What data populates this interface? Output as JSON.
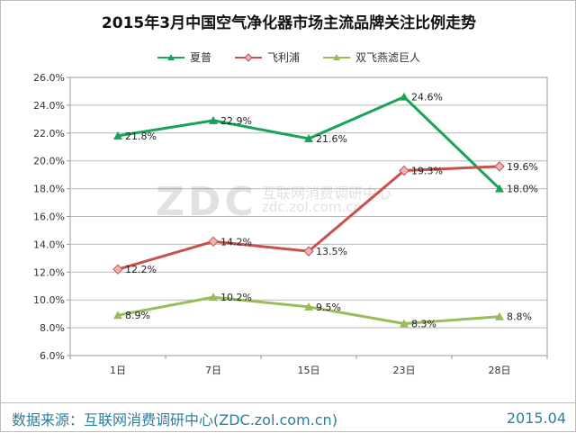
{
  "colors": {
    "series": [
      "#19a35a",
      "#c9504d",
      "#9bbb59"
    ],
    "footer": "#2e7d9b"
  },
  "chart_data": {
    "type": "line",
    "title": "2015年3月中国空气净化器市场主流品牌关注比例走势",
    "categories": [
      "1日",
      "7日",
      "15日",
      "23日",
      "28日"
    ],
    "series": [
      {
        "name": "夏普",
        "values": [
          21.8,
          22.9,
          21.6,
          24.6,
          18.0
        ],
        "labels": [
          "21.8%",
          "22.9%",
          "21.6%",
          "24.6%",
          "18.0%"
        ],
        "marker": "triangle"
      },
      {
        "name": "飞利浦",
        "values": [
          12.2,
          14.2,
          13.5,
          19.3,
          19.6
        ],
        "labels": [
          "12.2%",
          "14.2%",
          "13.5%",
          "19.3%",
          "19.6%"
        ],
        "marker": "diamond"
      },
      {
        "name": "双飞燕滤巨人",
        "values": [
          8.9,
          10.2,
          9.5,
          8.3,
          8.8
        ],
        "labels": [
          "8.9%",
          "10.2%",
          "9.5%",
          "8.3%",
          "8.8%"
        ],
        "marker": "triangle"
      }
    ],
    "y_ticks": [
      "6.0%",
      "8.0%",
      "10.0%",
      "12.0%",
      "14.0%",
      "16.0%",
      "18.0%",
      "20.0%",
      "22.0%",
      "24.0%",
      "26.0%"
    ],
    "ylim": [
      6,
      26
    ],
    "grid": true,
    "legend_position": "top"
  },
  "watermark": {
    "brand": "ZDC",
    "cn": "互联网消费调研中心",
    "url": "zdc.zol.com.cn"
  },
  "footer": {
    "source": "数据来源：互联网消费调研中心(ZDC.zol.com.cn)",
    "date": "2015.04"
  }
}
